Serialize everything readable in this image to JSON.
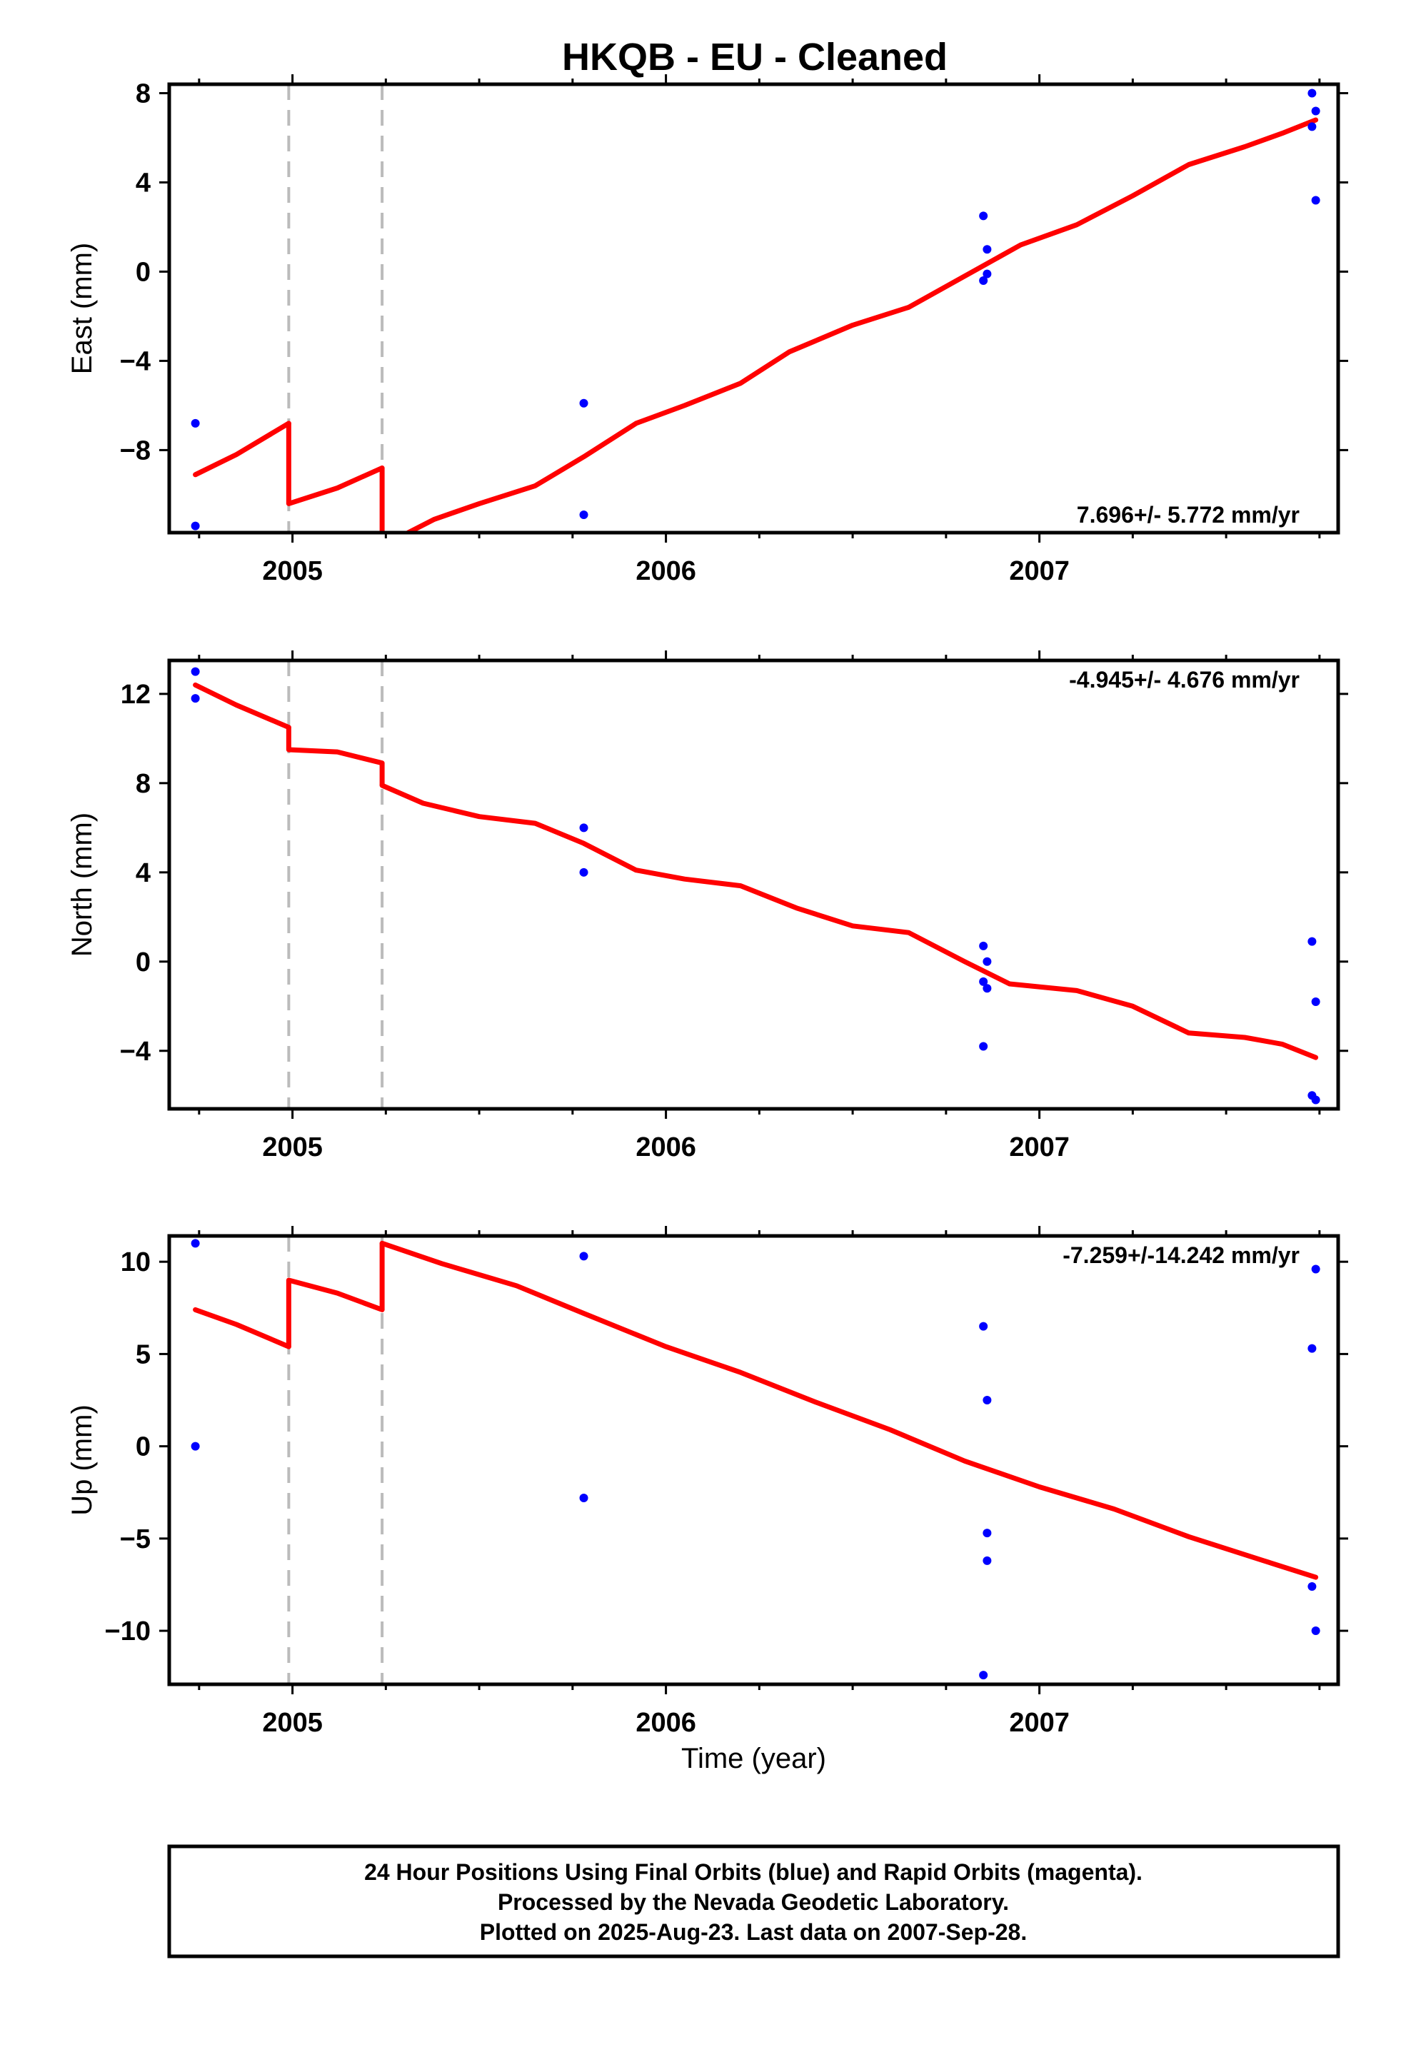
{
  "chart_data": {
    "type": "scatter",
    "title": "HKQB  - EU - Cleaned",
    "xlabel": "Time (year)",
    "x_ticks": [
      2005,
      2006,
      2007
    ],
    "xlim": [
      2004.67,
      2007.8
    ],
    "offset_epochs": [
      2004.99,
      2005.24
    ],
    "colors": {
      "points": "#0000ff",
      "model": "#ff0000",
      "offset_lines": "#bbbbbb"
    },
    "panels": [
      {
        "component": "East",
        "ylabel": "East (mm)",
        "ylim": [
          -11.7,
          8.4
        ],
        "yticks": [
          -8,
          -4,
          0,
          4,
          8
        ],
        "rate": "7.696+/- 5.772 mm/yr",
        "rate_position": "bottom-right",
        "points": [
          {
            "t": 2004.74,
            "v": -6.8
          },
          {
            "t": 2004.74,
            "v": -11.4
          },
          {
            "t": 2005.78,
            "v": -5.9
          },
          {
            "t": 2005.78,
            "v": -10.9
          },
          {
            "t": 2006.85,
            "v": 2.5
          },
          {
            "t": 2006.86,
            "v": 1.0
          },
          {
            "t": 2006.86,
            "v": -0.1
          },
          {
            "t": 2006.85,
            "v": -0.4
          },
          {
            "t": 2007.73,
            "v": 8.0
          },
          {
            "t": 2007.74,
            "v": 7.2
          },
          {
            "t": 2007.73,
            "v": 6.5
          },
          {
            "t": 2007.74,
            "v": 3.2
          }
        ],
        "model": [
          [
            [
              2004.74,
              -9.1
            ],
            [
              2004.85,
              -8.2
            ],
            [
              2004.99,
              -6.8
            ]
          ],
          [
            [
              2004.99,
              -10.4
            ],
            [
              2005.12,
              -9.7
            ],
            [
              2005.24,
              -8.8
            ]
          ],
          [
            [
              2005.24,
              -11.7
            ]
          ],
          [
            [
              2005.31,
              -11.7
            ],
            [
              2005.38,
              -11.1
            ],
            [
              2005.5,
              -10.4
            ],
            [
              2005.65,
              -9.6
            ],
            [
              2005.78,
              -8.3
            ],
            [
              2005.92,
              -6.8
            ],
            [
              2006.05,
              -6.0
            ],
            [
              2006.2,
              -5.0
            ],
            [
              2006.33,
              -3.6
            ],
            [
              2006.5,
              -2.4
            ],
            [
              2006.65,
              -1.6
            ],
            [
              2006.8,
              -0.2
            ],
            [
              2006.95,
              1.2
            ],
            [
              2007.1,
              2.1
            ],
            [
              2007.25,
              3.4
            ],
            [
              2007.4,
              4.8
            ],
            [
              2007.55,
              5.6
            ],
            [
              2007.65,
              6.2
            ],
            [
              2007.74,
              6.8
            ]
          ]
        ]
      },
      {
        "component": "North",
        "ylabel": "North (mm)",
        "ylim": [
          -6.6,
          13.5
        ],
        "yticks": [
          -4,
          0,
          4,
          8,
          12
        ],
        "rate": "-4.945+/- 4.676 mm/yr",
        "rate_position": "top-right",
        "points": [
          {
            "t": 2004.74,
            "v": 13.0
          },
          {
            "t": 2004.74,
            "v": 11.8
          },
          {
            "t": 2005.78,
            "v": 6.0
          },
          {
            "t": 2005.78,
            "v": 4.0
          },
          {
            "t": 2006.85,
            "v": 0.7
          },
          {
            "t": 2006.86,
            "v": 0.0
          },
          {
            "t": 2006.85,
            "v": -0.9
          },
          {
            "t": 2006.86,
            "v": -1.2
          },
          {
            "t": 2006.85,
            "v": -3.8
          },
          {
            "t": 2007.73,
            "v": 0.9
          },
          {
            "t": 2007.74,
            "v": -1.8
          },
          {
            "t": 2007.73,
            "v": -6.0
          },
          {
            "t": 2007.74,
            "v": -6.2
          }
        ],
        "model": [
          [
            [
              2004.74,
              12.4
            ],
            [
              2004.85,
              11.5
            ],
            [
              2004.99,
              10.5
            ]
          ],
          [
            [
              2004.99,
              9.5
            ],
            [
              2005.12,
              9.4
            ],
            [
              2005.24,
              8.9
            ]
          ],
          [
            [
              2005.24,
              7.9
            ],
            [
              2005.35,
              7.1
            ],
            [
              2005.5,
              6.5
            ],
            [
              2005.65,
              6.2
            ],
            [
              2005.78,
              5.3
            ],
            [
              2005.92,
              4.1
            ],
            [
              2006.05,
              3.7
            ],
            [
              2006.2,
              3.4
            ],
            [
              2006.35,
              2.4
            ],
            [
              2006.5,
              1.6
            ],
            [
              2006.65,
              1.3
            ],
            [
              2006.8,
              0.0
            ],
            [
              2006.92,
              -1.0
            ],
            [
              2007.1,
              -1.3
            ],
            [
              2007.25,
              -2.0
            ],
            [
              2007.4,
              -3.2
            ],
            [
              2007.55,
              -3.4
            ],
            [
              2007.65,
              -3.7
            ],
            [
              2007.74,
              -4.3
            ]
          ]
        ]
      },
      {
        "component": "Up",
        "ylabel": "Up (mm)",
        "ylim": [
          -12.9,
          11.4
        ],
        "yticks": [
          -10,
          -5,
          0,
          5,
          10
        ],
        "rate": "-7.259+/-14.242 mm/yr",
        "rate_position": "top-right",
        "points": [
          {
            "t": 2004.74,
            "v": 11.0
          },
          {
            "t": 2004.74,
            "v": 0.0
          },
          {
            "t": 2005.78,
            "v": 10.3
          },
          {
            "t": 2005.78,
            "v": -2.8
          },
          {
            "t": 2006.85,
            "v": 6.5
          },
          {
            "t": 2006.86,
            "v": 2.5
          },
          {
            "t": 2006.86,
            "v": -4.7
          },
          {
            "t": 2006.86,
            "v": -6.2
          },
          {
            "t": 2006.85,
            "v": -12.4
          },
          {
            "t": 2007.74,
            "v": 9.6
          },
          {
            "t": 2007.73,
            "v": 5.3
          },
          {
            "t": 2007.73,
            "v": -7.6
          },
          {
            "t": 2007.74,
            "v": -10.0
          }
        ],
        "model": [
          [
            [
              2004.74,
              7.4
            ],
            [
              2004.85,
              6.6
            ],
            [
              2004.99,
              5.4
            ]
          ],
          [
            [
              2004.99,
              9.0
            ],
            [
              2005.12,
              8.3
            ],
            [
              2005.24,
              7.4
            ]
          ],
          [
            [
              2005.24,
              11.0
            ],
            [
              2005.4,
              9.9
            ],
            [
              2005.6,
              8.7
            ],
            [
              2005.78,
              7.2
            ],
            [
              2006.0,
              5.4
            ],
            [
              2006.2,
              4.0
            ],
            [
              2006.4,
              2.4
            ],
            [
              2006.6,
              0.9
            ],
            [
              2006.8,
              -0.8
            ],
            [
              2007.0,
              -2.2
            ],
            [
              2007.2,
              -3.4
            ],
            [
              2007.4,
              -4.9
            ],
            [
              2007.6,
              -6.2
            ],
            [
              2007.74,
              -7.1
            ]
          ]
        ]
      }
    ]
  },
  "footer": {
    "line1": "24 Hour Positions Using Final Orbits (blue) and Rapid Orbits (magenta).",
    "line2": "Processed by the Nevada Geodetic Laboratory.",
    "line3": "Plotted on 2025-Aug-23. Last data on 2007-Sep-28."
  }
}
